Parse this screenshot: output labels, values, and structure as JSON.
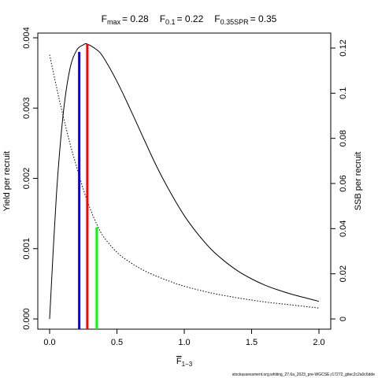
{
  "chart_data": {
    "type": "line",
    "title": {
      "fmax": {
        "symbol": "F",
        "sub": "max",
        "value": "= 0.28"
      },
      "f01": {
        "symbol": "F",
        "sub": "0.1",
        "value": "= 0.22"
      },
      "f35": {
        "symbol": "F",
        "sub": "0.35SPR",
        "value": "= 0.35"
      }
    },
    "xlabel": {
      "symbol": "F",
      "sub": "1−3"
    },
    "ylabel_left": "Yield per recruit",
    "ylabel_right": "SSB per recruit",
    "xlim": [
      0,
      2
    ],
    "ylim_left": [
      0,
      0.004
    ],
    "ylim_right": [
      0,
      0.12
    ],
    "x_ticks": [
      {
        "value": 0,
        "label": "0.0"
      },
      {
        "value": 0.5,
        "label": "0.5"
      },
      {
        "value": 1,
        "label": "1.0"
      },
      {
        "value": 1.5,
        "label": "1.5"
      },
      {
        "value": 2,
        "label": "2.0"
      }
    ],
    "y_ticks_left": [
      {
        "value": 0,
        "label": "0.000"
      },
      {
        "value": 0.001,
        "label": "0.001"
      },
      {
        "value": 0.002,
        "label": "0.002"
      },
      {
        "value": 0.003,
        "label": "0.003"
      },
      {
        "value": 0.004,
        "label": "0.004"
      }
    ],
    "y_ticks_right": [
      {
        "value": 0,
        "label": "0"
      },
      {
        "value": 0.02,
        "label": "0.02"
      },
      {
        "value": 0.04,
        "label": "0.04"
      },
      {
        "value": 0.06,
        "label": "0.06"
      },
      {
        "value": 0.08,
        "label": "0.08"
      },
      {
        "value": 0.1,
        "label": "0.1"
      },
      {
        "value": 0.12,
        "label": "0.12"
      }
    ],
    "series": [
      {
        "axis": "left",
        "style": "solid",
        "color": "#000000",
        "x": [
          0,
          0.05,
          0.1,
          0.15,
          0.2,
          0.25,
          0.28,
          0.35,
          0.4,
          0.5,
          0.6,
          0.7,
          0.8,
          0.9,
          1.0,
          1.1,
          1.2,
          1.3,
          1.4,
          1.5,
          1.6,
          1.7,
          1.8,
          1.9,
          2.0
        ],
        "y": [
          0,
          0.00175,
          0.0029,
          0.00355,
          0.00382,
          0.0039,
          0.00391,
          0.00383,
          0.00372,
          0.00338,
          0.00298,
          0.00256,
          0.00215,
          0.00179,
          0.00147,
          0.00121,
          0.00099,
          0.00082,
          0.00068,
          0.00057,
          0.00048,
          0.00041,
          0.00035,
          0.0003,
          0.00025
        ]
      },
      {
        "axis": "right",
        "style": "dotted",
        "color": "#000000",
        "x": [
          0,
          0.05,
          0.1,
          0.15,
          0.2,
          0.25,
          0.3,
          0.35,
          0.4,
          0.5,
          0.6,
          0.7,
          0.8,
          0.9,
          1.0,
          1.2,
          1.4,
          1.6,
          1.8,
          2.0
        ],
        "y": [
          0.117,
          0.103,
          0.09,
          0.078,
          0.0675,
          0.0575,
          0.049,
          0.042,
          0.0365,
          0.0295,
          0.025,
          0.0215,
          0.0188,
          0.0165,
          0.0145,
          0.0115,
          0.0093,
          0.0075,
          0.0062,
          0.0048
        ]
      }
    ],
    "reference_lines": [
      {
        "name": "F0.1",
        "x": 0.22,
        "y_top": 0.0038,
        "axis": "left",
        "color": "#0000ff"
      },
      {
        "name": "Fmax",
        "x": 0.28,
        "y_top": 0.00391,
        "axis": "left",
        "color": "#ff0000"
      },
      {
        "name": "F0.35SPR",
        "x": 0.35,
        "y_top": 0.0405,
        "axis": "right",
        "color": "#00ff00"
      }
    ]
  },
  "footer_text": "stockassessment.org,whiting_27.6a_2023_pre-WGCSE,r17272_gitec2c2a0c6dde"
}
